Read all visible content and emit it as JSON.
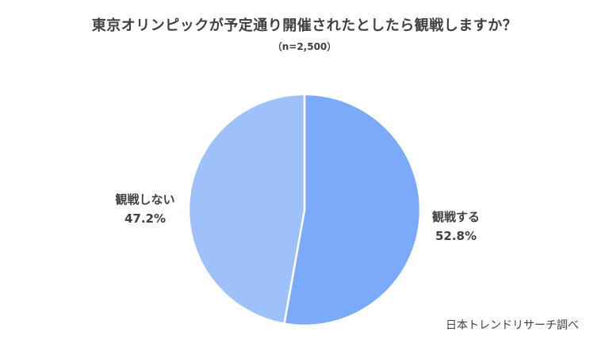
{
  "chart_data": {
    "type": "pie",
    "title": "東京オリンピックが予定通り開催されたとしたら観戦しますか？",
    "subtitle": "（n=2,500）",
    "slices": [
      {
        "label": "観戦する",
        "value": 52.8,
        "value_label": "52.8%",
        "color": "#7aaaf9"
      },
      {
        "label": "観戦しない",
        "value": 47.2,
        "value_label": "47.2%",
        "color": "#9fc1fb"
      }
    ],
    "start_angle": "12 o'clock",
    "direction": "clockwise",
    "legend": "none",
    "source": "日本トレンドリサーチ調べ"
  }
}
